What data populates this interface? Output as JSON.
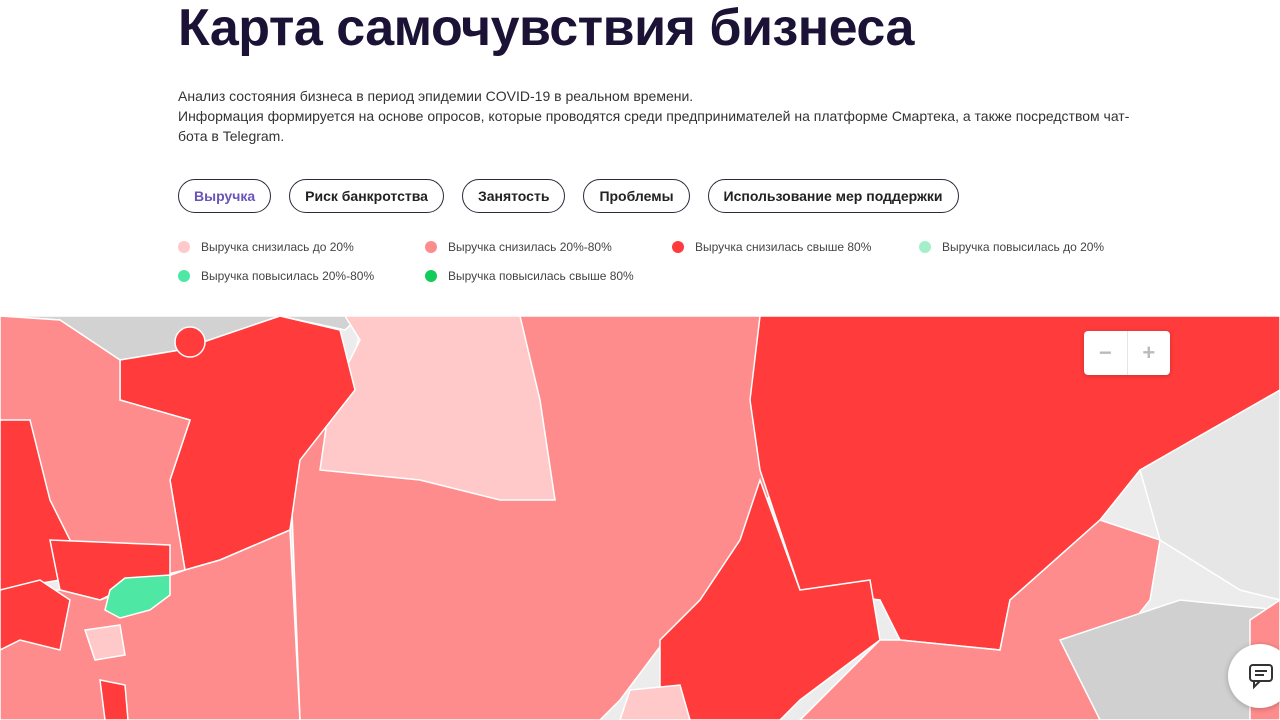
{
  "header": {
    "title": "Карта самочувствия бизнеса",
    "description": [
      "Анализ состояния бизнеса в период эпидемии COVID-19 в реальном времени.",
      "Информация формируется на основе опросов, которые проводятся среди предпринимателей на платформе Смартека, а также посредством чат-бота в Telegram."
    ]
  },
  "tabs": [
    {
      "label": "Выручка",
      "active": true
    },
    {
      "label": "Риск банкротства",
      "active": false
    },
    {
      "label": "Занятость",
      "active": false
    },
    {
      "label": "Проблемы",
      "active": false
    },
    {
      "label": "Использование мер поддержки",
      "active": false
    }
  ],
  "legend": [
    {
      "label": "Выручка снизилась до 20%",
      "color": "#ffc9c9"
    },
    {
      "label": "Выручка снизилась 20%-80%",
      "color": "#ff8c8c"
    },
    {
      "label": "Выручка снизилась свыше 80%",
      "color": "#ff3b3b"
    },
    {
      "label": "Выручка повысилась до 20%",
      "color": "#a3efc9"
    },
    {
      "label": "Выручка повысилась 20%-80%",
      "color": "#4ee8a4"
    },
    {
      "label": "Выручка повысилась свыше 80%",
      "color": "#12cc5a"
    }
  ],
  "zoom": {
    "out": "−",
    "in": "+"
  }
}
